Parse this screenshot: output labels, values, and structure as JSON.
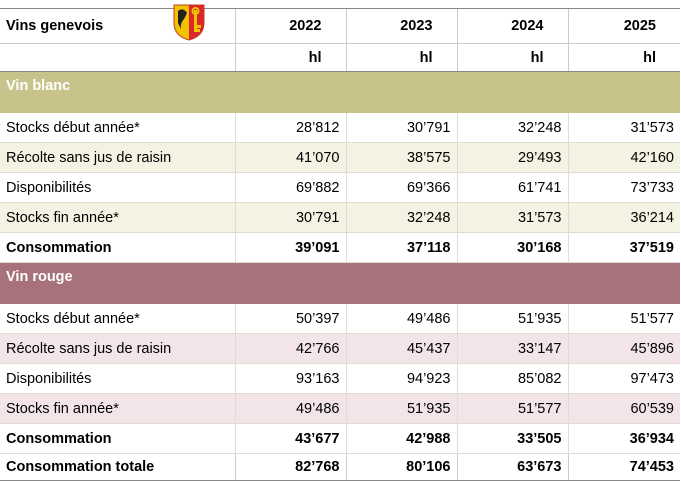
{
  "header": {
    "title": "Vins genevois",
    "years": [
      "2022",
      "2023",
      "2024",
      "2025"
    ],
    "units": [
      "hl",
      "hl",
      "hl",
      "hl"
    ]
  },
  "sections": [
    {
      "name": "Vin blanc",
      "rows": [
        {
          "label": "Stocks début année*",
          "values": [
            "28’812",
            "30’791",
            "32’248",
            "31’573"
          ]
        },
        {
          "label": "Récolte sans jus de raisin",
          "values": [
            "41’070",
            "38’575",
            "29’493",
            "42’160"
          ]
        },
        {
          "label": "Disponibilités",
          "values": [
            "69’882",
            "69’366",
            "61’741",
            "73’733"
          ]
        },
        {
          "label": "Stocks fin année*",
          "values": [
            "30’791",
            "32’248",
            "31’573",
            "36’214"
          ]
        },
        {
          "label": "Consommation",
          "values": [
            "39’091",
            "37’118",
            "30’168",
            "37’519"
          ]
        }
      ]
    },
    {
      "name": "Vin rouge",
      "rows": [
        {
          "label": "Stocks début année*",
          "values": [
            "50’397",
            "49’486",
            "51’935",
            "51’577"
          ]
        },
        {
          "label": "Récolte sans jus de raisin",
          "values": [
            "42’766",
            "45’437",
            "33’147",
            "45’896"
          ]
        },
        {
          "label": "Disponibilités",
          "values": [
            "93’163",
            "94’923",
            "85’082",
            "97’473"
          ]
        },
        {
          "label": "Stocks fin année*",
          "values": [
            "49’486",
            "51’935",
            "51’577",
            "60’539"
          ]
        },
        {
          "label": "Consommation",
          "values": [
            "43’677",
            "42’988",
            "33’505",
            "36’934"
          ]
        }
      ]
    }
  ],
  "total": {
    "label": "Consommation totale",
    "values": [
      "82’768",
      "80’106",
      "63’673",
      "74’453"
    ]
  }
}
